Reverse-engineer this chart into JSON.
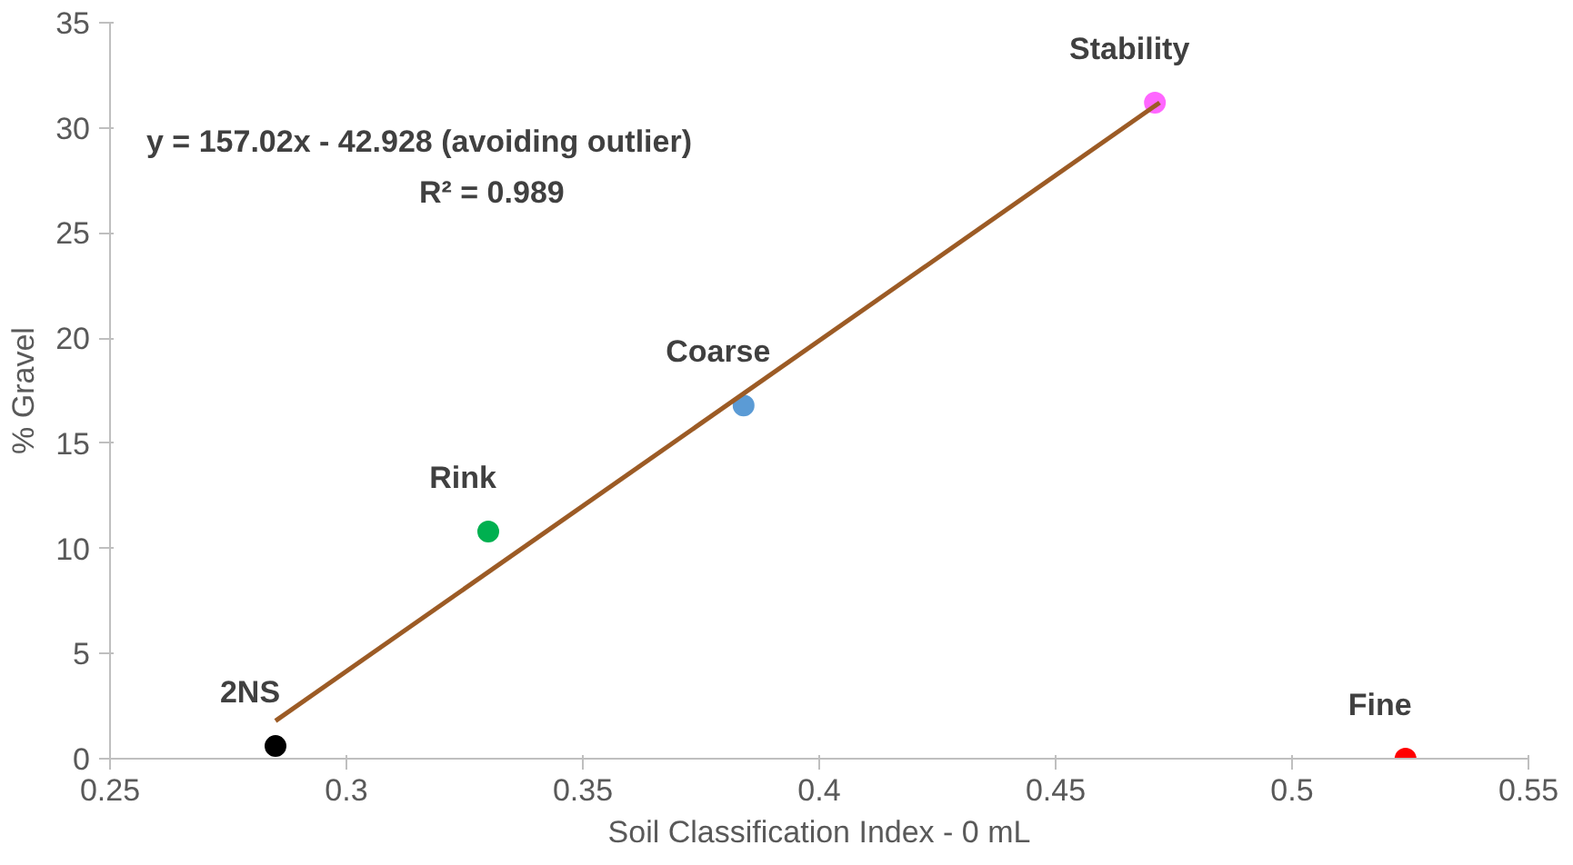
{
  "chart_data": {
    "type": "scatter",
    "xlabel": "Soil Classification Index - 0 mL",
    "ylabel": "% Gravel",
    "xlim": [
      0.25,
      0.55
    ],
    "xticks": [
      {
        "value": 0.25,
        "label": "0.25"
      },
      {
        "value": 0.3,
        "label": "0.3"
      },
      {
        "value": 0.35,
        "label": "0.35"
      },
      {
        "value": 0.4,
        "label": "0.4"
      },
      {
        "value": 0.45,
        "label": "0.45"
      },
      {
        "value": 0.5,
        "label": "0.5"
      },
      {
        "value": 0.55,
        "label": "0.55"
      }
    ],
    "ylim": [
      0,
      35
    ],
    "yticks": [
      0,
      5,
      10,
      15,
      20,
      25,
      30,
      35
    ],
    "grid": false,
    "marker": "circle",
    "series": [
      {
        "x": [
          0.285,
          0.33,
          0.384,
          0.471,
          0.524
        ],
        "values": [
          0.6,
          10.8,
          16.8,
          31.2,
          0
        ],
        "colors": [
          "#000000",
          "#00b050",
          "#5b9bd5",
          "#ff66ff",
          "#ff0000"
        ]
      },
      {
        "type": "line",
        "x": [
          0.285,
          0.472
        ],
        "values": [
          1.8,
          31.2
        ],
        "color": "#9c5b25",
        "line_style": "solid",
        "marker": "none"
      }
    ],
    "annotations": [
      "y = 157.02x - 42.928 (avoiding outlier)",
      "R² = 0.989",
      {
        "text": "2NS",
        "x": 0.285,
        "y": 0.6
      },
      {
        "text": "Rink",
        "x": 0.33,
        "y": 10.8
      },
      {
        "text": "Coarse",
        "x": 0.384,
        "y": 16.8
      },
      {
        "text": "Stability",
        "x": 0.471,
        "y": 31.2
      },
      {
        "text": "Fine",
        "x": 0.524,
        "y": 0
      }
    ]
  }
}
